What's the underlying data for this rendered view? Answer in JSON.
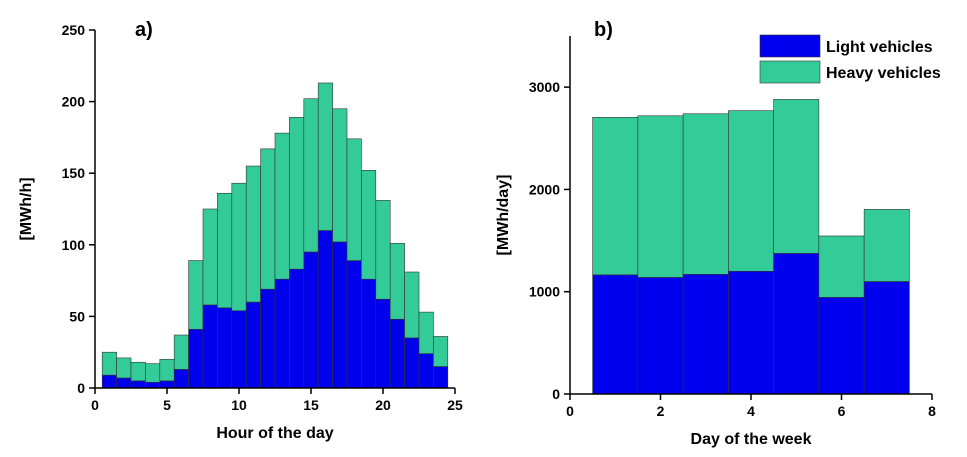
{
  "chart_data": [
    {
      "type": "bar",
      "stacked": true,
      "panel_label": "a)",
      "xlabel": "Hour of the day",
      "ylabel": "[MWh/h]",
      "xlim": [
        0,
        25
      ],
      "ylim": [
        0,
        250
      ],
      "xticks": [
        0,
        5,
        10,
        15,
        20,
        25
      ],
      "yticks": [
        0,
        50,
        100,
        150,
        200,
        250
      ],
      "x": [
        1,
        2,
        3,
        4,
        5,
        6,
        7,
        8,
        9,
        10,
        11,
        12,
        13,
        14,
        15,
        16,
        17,
        18,
        19,
        20,
        21,
        22,
        23,
        24
      ],
      "series": [
        {
          "name": "Light vehicles",
          "color": "#0000ee",
          "values": [
            9,
            7,
            5,
            4,
            5,
            13,
            41,
            58,
            56,
            54,
            60,
            69,
            76,
            83,
            95,
            110,
            102,
            89,
            76,
            62,
            48,
            35,
            24,
            15
          ]
        },
        {
          "name": "Heavy vehicles",
          "color": "#33cc99",
          "values": [
            16,
            14,
            13,
            13,
            15,
            24,
            48,
            67,
            80,
            89,
            95,
            98,
            102,
            106,
            107,
            103,
            93,
            85,
            76,
            69,
            53,
            46,
            29,
            21
          ]
        }
      ],
      "grid": false
    },
    {
      "type": "bar",
      "stacked": true,
      "panel_label": "b)",
      "xlabel": "Day of the week",
      "ylabel": "[MWh/day]",
      "xlim": [
        0,
        8
      ],
      "ylim": [
        0,
        3500
      ],
      "xticks": [
        0,
        2,
        4,
        6,
        8
      ],
      "yticks": [
        0,
        1000,
        2000,
        3000
      ],
      "x": [
        1,
        2,
        3,
        4,
        5,
        6,
        7
      ],
      "series": [
        {
          "name": "Light vehicles",
          "color": "#0000ee",
          "values": [
            1165,
            1140,
            1170,
            1200,
            1375,
            945,
            1100
          ]
        },
        {
          "name": "Heavy vehicles",
          "color": "#33cc99",
          "values": [
            1540,
            1580,
            1570,
            1570,
            1505,
            600,
            705
          ]
        }
      ],
      "legend": {
        "placement": "top-right",
        "entries": [
          "Light vehicles",
          "Heavy vehicles"
        ]
      },
      "grid": false
    }
  ]
}
